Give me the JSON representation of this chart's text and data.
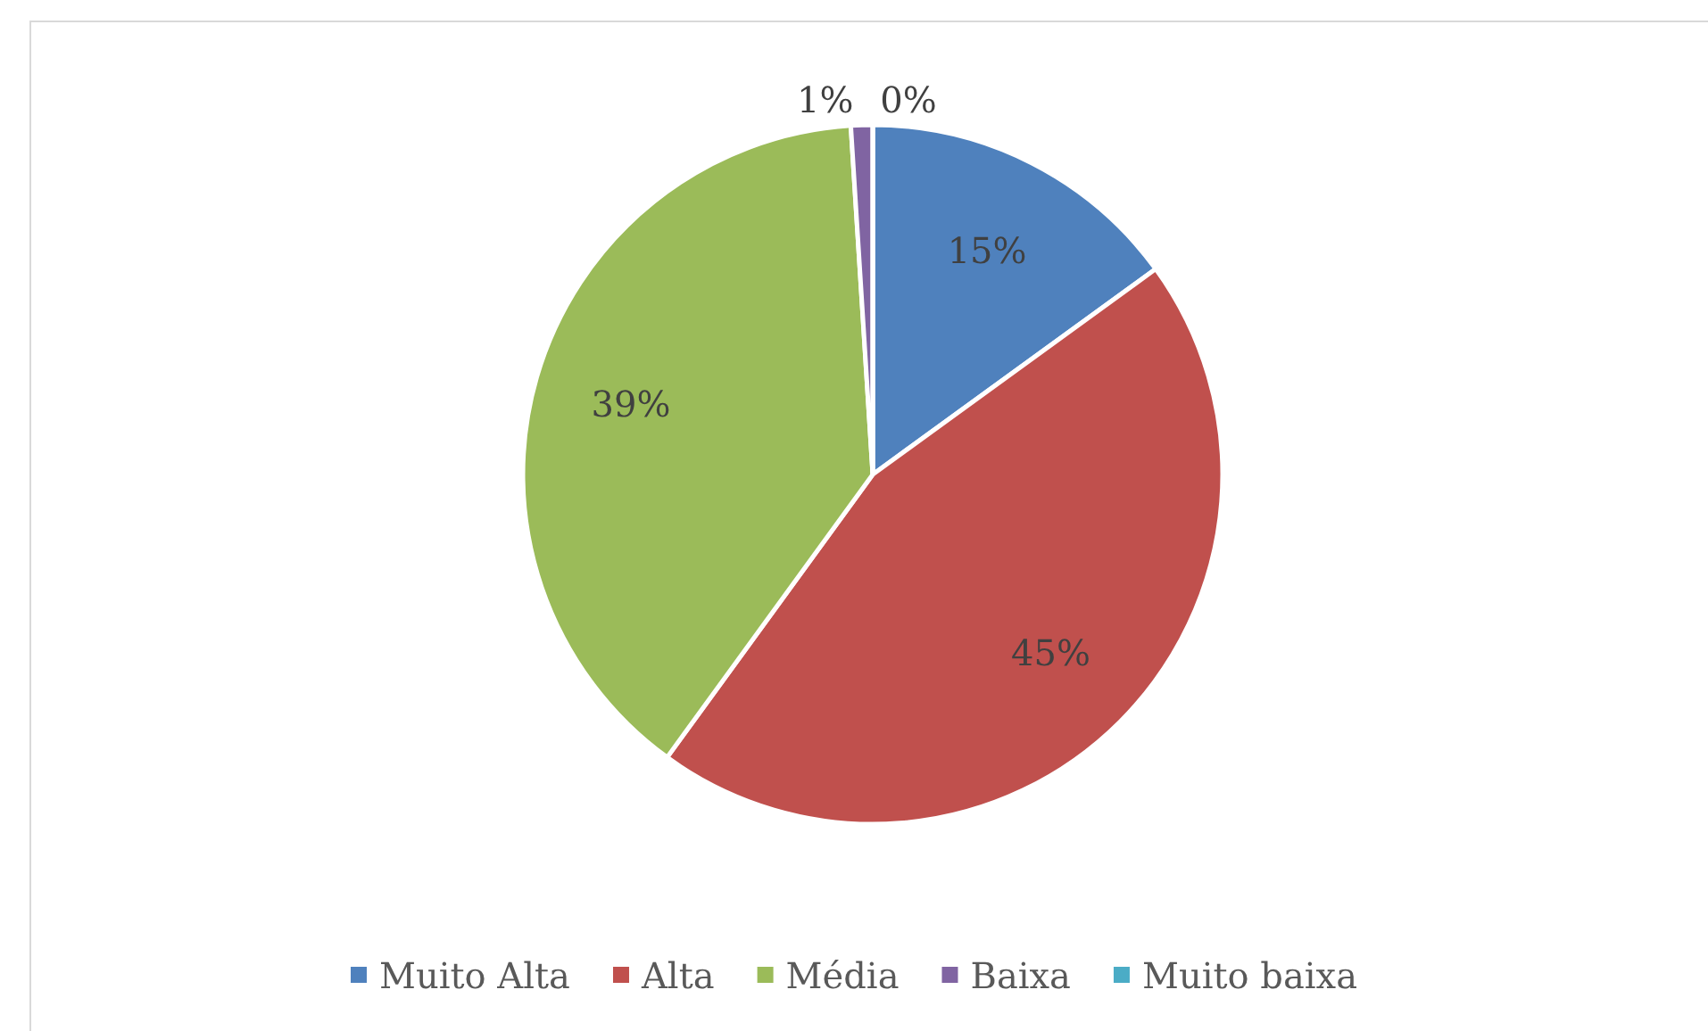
{
  "chart_data": {
    "type": "pie",
    "categories": [
      "Muito Alta",
      "Alta",
      "Média",
      "Baixa",
      "Muito baixa"
    ],
    "values": [
      15,
      45,
      39,
      1,
      0
    ],
    "colors": [
      "#4f81bd",
      "#c0504d",
      "#9bbb59",
      "#8064a2",
      "#4bacc6"
    ],
    "value_labels": [
      "15%",
      "45%",
      "39%",
      "1%",
      "0%"
    ],
    "legend": "bottom"
  }
}
